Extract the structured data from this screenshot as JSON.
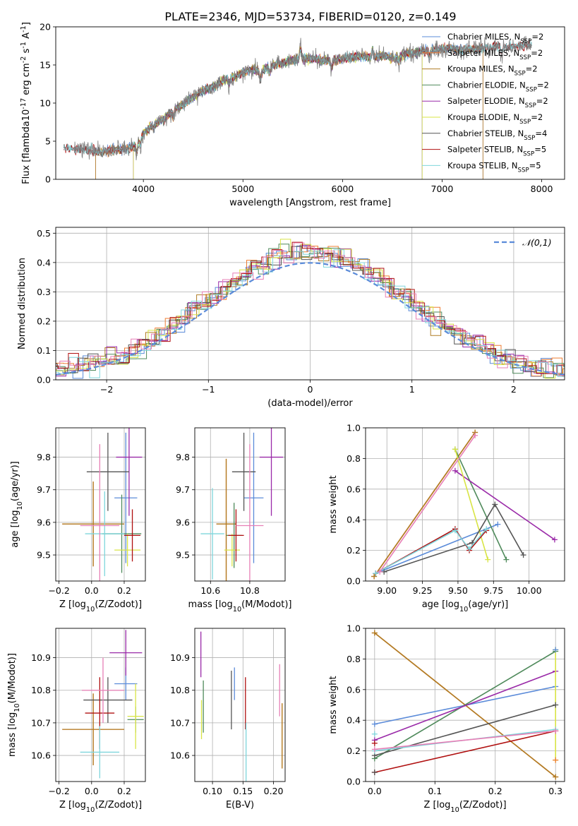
{
  "figure": {
    "title": "PLATE=2346, MJD=53734, FIBERID=0120, z=0.149"
  },
  "colors": {
    "grid": "#b0b0b0",
    "models": [
      "#5b8bd9",
      "#ee7d33",
      "#b07d26",
      "#4f8a5b",
      "#9a2aa8",
      "#d8e445",
      "#555555",
      "#b01010",
      "#7fd6dc"
    ],
    "extra_histogram": [
      "#e77fb6"
    ]
  },
  "chart_data": [
    {
      "type": "line",
      "id": "spectrum",
      "xlabel": "wavelength [Angstrom, rest frame]",
      "ylabel": "Flux [f$_\\lambda$10$^{-17}$ erg cm$^{-2}$ s$^{-1}$ A$^{-1}$]",
      "xlim": [
        3120,
        8230
      ],
      "ylim": [
        0,
        20
      ],
      "xticks": [
        4000,
        5000,
        6000,
        7000,
        8000
      ],
      "yticks": [
        0,
        5,
        10,
        15,
        20
      ],
      "legend_position": "top-right",
      "series": [
        {
          "name": "Chabrier MILES, N$_{SSP}$=2",
          "x": [
            3520,
            7410
          ],
          "cutoff_edges": [
            3520,
            7410
          ]
        },
        {
          "name": "Salpeter MILES, N$_{SSP}$=2",
          "x": [
            3520,
            7410
          ],
          "cutoff_edges": [
            3520,
            7410
          ]
        },
        {
          "name": "Kroupa MILES, N$_{SSP}$=2",
          "x": [
            3520,
            7410
          ],
          "cutoff_edges": [
            3520,
            7410
          ]
        },
        {
          "name": "Chabrier ELODIE, N$_{SSP}$=2",
          "x": [
            3900,
            6800
          ],
          "cutoff_edges": [
            3900,
            6800
          ]
        },
        {
          "name": "Salpeter ELODIE, N$_{SSP}$=2",
          "x": [
            3900,
            6800
          ],
          "cutoff_edges": [
            3900,
            6800
          ]
        },
        {
          "name": "Kroupa ELODIE, N$_{SSP}$=2",
          "x": [
            3900,
            6800
          ],
          "cutoff_edges": [
            3900,
            6800
          ]
        },
        {
          "name": "Chabrier STELIB, N$_{SSP}$=4",
          "x": [
            3200,
            7900
          ]
        },
        {
          "name": "Salpeter STELIB, N$_{SSP}$=5",
          "x": [
            3200,
            7900
          ]
        },
        {
          "name": "Kroupa STELIB, N$_{SSP}$=5",
          "x": [
            3200,
            7900
          ]
        }
      ],
      "observed_flux": {
        "x": [
          3300,
          3400,
          3500,
          3600,
          3700,
          3800,
          3900,
          4000,
          4100,
          4200,
          4300,
          4400,
          4500,
          4600,
          4700,
          4800,
          4900,
          5000,
          5100,
          5200,
          5300,
          5400,
          5500,
          5600,
          5700,
          5800,
          5900,
          6000,
          6100,
          6200,
          6300,
          6400,
          6500,
          6600,
          6700,
          6800,
          6900,
          7000,
          7100,
          7200,
          7300,
          7400,
          7500,
          7600,
          7700,
          7800,
          7900
        ],
        "y": [
          4.0,
          4.0,
          3.8,
          3.6,
          3.9,
          4.0,
          4.2,
          6.0,
          7.2,
          7.9,
          9.0,
          9.8,
          10.8,
          11.6,
          12.1,
          13.0,
          13.4,
          14.0,
          14.4,
          14.2,
          15.0,
          15.3,
          15.6,
          15.8,
          15.9,
          15.6,
          15.6,
          15.9,
          16.0,
          16.1,
          16.0,
          16.3,
          15.9,
          16.3,
          16.5,
          16.8,
          17.0,
          17.2,
          17.1,
          17.0,
          17.1,
          17.2,
          17.4,
          17.5,
          17.4,
          17.6,
          17.7
        ]
      }
    },
    {
      "type": "step-histogram",
      "id": "residuals",
      "xlabel": "(data-model)/error",
      "ylabel": "Normed distribution",
      "xlim": [
        -2.5,
        2.5
      ],
      "ylim": [
        0,
        0.52
      ],
      "xticks": [
        -2,
        -1,
        0,
        1,
        2
      ],
      "yticks": [
        0.0,
        0.1,
        0.2,
        0.3,
        0.4,
        0.5
      ],
      "legend_position": "top-right",
      "bin_width": 0.1,
      "reference_curve": {
        "name": "$\\mathcal{N}(0,1)$",
        "mu": 0,
        "sigma": 1
      }
    },
    {
      "type": "errorbar",
      "id": "age-vs-Z",
      "xlabel": "Z [log$_{10}$($Z/Z_\\odot$)]",
      "ylabel": "age  [log$_{10}$($age/yr$)]",
      "xlim": [
        -0.22,
        0.33
      ],
      "ylim": [
        9.42,
        9.89
      ],
      "xticks": [
        -0.2,
        0.0,
        0.2
      ],
      "yticks": [
        9.5,
        9.6,
        9.7,
        9.8
      ],
      "points": [
        {
          "x": 0.21,
          "y": 9.675,
          "xerr": 0.07,
          "yerr": 0.2
        },
        {
          "x": 0.01,
          "y": 9.595,
          "xerr": 0.19,
          "yerr": 0.13
        },
        {
          "x": 0.01,
          "y": 9.595,
          "xerr": 0.19,
          "yerr": 0.13
        },
        {
          "x": 0.185,
          "y": 9.565,
          "xerr": 0.12,
          "yerr": 0.12
        },
        {
          "x": 0.23,
          "y": 9.8,
          "xerr": 0.08,
          "yerr": 0.18
        },
        {
          "x": 0.22,
          "y": 9.515,
          "xerr": 0.08,
          "yerr": 0.05
        },
        {
          "x": 0.1,
          "y": 9.755,
          "xerr": 0.13,
          "yerr": 0.12
        },
        {
          "x": 0.25,
          "y": 9.56,
          "xerr": 0.05,
          "yerr": 0.08
        },
        {
          "x": 0.08,
          "y": 9.565,
          "xerr": 0.12,
          "yerr": 0.13
        },
        {
          "x": 0.05,
          "y": 9.59,
          "xerr": 0.12,
          "yerr": 0.25
        }
      ]
    },
    {
      "type": "errorbar",
      "id": "age-vs-mass",
      "xlabel": "mass [log$_{10}$($M/M_\\odot$)]",
      "ylabel": "",
      "xlim": [
        10.52,
        10.98
      ],
      "ylim": [
        9.42,
        9.89
      ],
      "xticks": [
        10.6,
        10.8
      ],
      "yticks": [
        9.5,
        9.6,
        9.7,
        9.8
      ],
      "points": [
        {
          "x": 10.82,
          "y": 9.675,
          "xerr": 0.05,
          "yerr": 0.2
        },
        {
          "x": 10.68,
          "y": 9.595,
          "xerr": 0.05,
          "yerr": 0.2
        },
        {
          "x": 10.68,
          "y": 9.595,
          "xerr": 0.05,
          "yerr": 0.2
        },
        {
          "x": 10.72,
          "y": 9.56,
          "xerr": 0.04,
          "yerr": 0.1
        },
        {
          "x": 10.91,
          "y": 9.8,
          "xerr": 0.06,
          "yerr": 0.18
        },
        {
          "x": 10.71,
          "y": 9.515,
          "xerr": 0.04,
          "yerr": 0.05
        },
        {
          "x": 10.77,
          "y": 9.755,
          "xerr": 0.06,
          "yerr": 0.12
        },
        {
          "x": 10.73,
          "y": 9.56,
          "xerr": 0.04,
          "yerr": 0.08
        },
        {
          "x": 10.61,
          "y": 9.565,
          "xerr": 0.06,
          "yerr": 0.14
        },
        {
          "x": 10.8,
          "y": 9.59,
          "xerr": 0.07,
          "yerr": 0.25
        }
      ]
    },
    {
      "type": "line",
      "id": "weight-vs-age",
      "xlabel": "age  [log$_{10}$($age/yr$)]",
      "ylabel": "mass weight",
      "xlim": [
        8.85,
        10.25
      ],
      "ylim": [
        0.0,
        1.0
      ],
      "xticks": [
        9.0,
        9.25,
        9.5,
        9.75,
        10.0
      ],
      "yticks": [
        0.0,
        0.2,
        0.4,
        0.6,
        0.8,
        1.0
      ],
      "series": [
        {
          "x": [
            8.92,
            9.78
          ],
          "y": [
            0.05,
            0.37
          ]
        },
        {
          "x": [
            8.91,
            9.62
          ],
          "y": [
            0.03,
            0.97
          ]
        },
        {
          "x": [
            8.91,
            9.62
          ],
          "y": [
            0.03,
            0.97
          ]
        },
        {
          "x": [
            9.48,
            9.84
          ],
          "y": [
            0.86,
            0.14
          ]
        },
        {
          "x": [
            9.48,
            10.18
          ],
          "y": [
            0.72,
            0.27
          ]
        },
        {
          "x": [
            9.48,
            9.71
          ],
          "y": [
            0.86,
            0.14
          ]
        },
        {
          "x": [
            8.98,
            9.6,
            9.76,
            9.96
          ],
          "y": [
            0.06,
            0.25,
            0.5,
            0.17
          ]
        },
        {
          "x": [
            8.92,
            9.48,
            9.58,
            9.7
          ],
          "y": [
            0.05,
            0.34,
            0.2,
            0.33
          ]
        },
        {
          "x": [
            8.92,
            9.48,
            9.58,
            9.7
          ],
          "y": [
            0.05,
            0.33,
            0.21,
            0.34
          ]
        },
        {
          "x": [
            8.95,
            9.62
          ],
          "y": [
            0.06,
            0.95
          ]
        }
      ]
    },
    {
      "type": "errorbar",
      "id": "mass-vs-Z",
      "xlabel": "Z [log$_{10}$($Z/Z_\\odot$)]",
      "ylabel": "mass [log$_{10}$($M/M_\\odot$)]",
      "xlim": [
        -0.22,
        0.33
      ],
      "ylim": [
        10.52,
        10.99
      ],
      "xticks": [
        -0.2,
        0.0,
        0.2
      ],
      "yticks": [
        10.6,
        10.7,
        10.8,
        10.9
      ],
      "points": [
        {
          "x": 0.21,
          "y": 10.82,
          "xerr": 0.07,
          "yerr": 0.05
        },
        {
          "x": 0.01,
          "y": 10.68,
          "xerr": 0.19,
          "yerr": 0.11
        },
        {
          "x": 0.01,
          "y": 10.68,
          "xerr": 0.19,
          "yerr": 0.11
        },
        {
          "x": 0.27,
          "y": 10.71,
          "xerr": 0.05,
          "yerr": 0.04
        },
        {
          "x": 0.21,
          "y": 10.915,
          "xerr": 0.1,
          "yerr": 0.07
        },
        {
          "x": 0.27,
          "y": 10.72,
          "xerr": 0.05,
          "yerr": 0.1
        },
        {
          "x": 0.1,
          "y": 10.77,
          "xerr": 0.15,
          "yerr": 0.07
        },
        {
          "x": 0.05,
          "y": 10.73,
          "xerr": 0.09,
          "yerr": 0.11
        },
        {
          "x": 0.05,
          "y": 10.61,
          "xerr": 0.12,
          "yerr": 0.08
        },
        {
          "x": 0.07,
          "y": 10.8,
          "xerr": 0.13,
          "yerr": 0.1
        }
      ]
    },
    {
      "type": "errorbar",
      "id": "mass-vs-ebv",
      "xlabel": "E(B-V)",
      "ylabel": "",
      "xlim": [
        0.071,
        0.219
      ],
      "ylim": [
        10.52,
        10.99
      ],
      "xticks": [
        0.1,
        0.15,
        0.2
      ],
      "yticks": [
        10.6,
        10.7,
        10.8,
        10.9
      ],
      "points": [
        {
          "x": 0.136,
          "y": 10.82,
          "yerr": 0.05
        },
        {
          "x": 0.214,
          "y": 10.66,
          "yerr": 0.1
        },
        {
          "x": 0.214,
          "y": 10.66,
          "yerr": 0.1
        },
        {
          "x": 0.085,
          "y": 10.75,
          "yerr": 0.08
        },
        {
          "x": 0.081,
          "y": 10.91,
          "yerr": 0.07
        },
        {
          "x": 0.082,
          "y": 10.71,
          "yerr": 0.06
        },
        {
          "x": 0.131,
          "y": 10.77,
          "yerr": 0.09
        },
        {
          "x": 0.154,
          "y": 10.76,
          "yerr": 0.08
        },
        {
          "x": 0.155,
          "y": 10.61,
          "yerr": 0.09
        },
        {
          "x": 0.21,
          "y": 10.8,
          "yerr": 0.08
        }
      ]
    },
    {
      "type": "line",
      "id": "weight-vs-Z",
      "xlabel": "Z [log$_{10}$($Z/Z_\\odot$)]",
      "ylabel": "mass weight",
      "xlim": [
        -0.015,
        0.315
      ],
      "ylim": [
        0.0,
        1.0
      ],
      "xticks": [
        0.0,
        0.1,
        0.2,
        0.3
      ],
      "yticks": [
        0.0,
        0.2,
        0.4,
        0.6,
        0.8,
        1.0
      ],
      "series": [
        {
          "x": [
            0.0,
            0.3
          ],
          "y": [
            0.375,
            0.62
          ]
        },
        {
          "x": [
            0.0,
            0.3
          ],
          "y": [
            0.97,
            0.03
          ]
        },
        {
          "x": [
            0.0,
            0.3
          ],
          "y": [
            0.97,
            0.03
          ]
        },
        {
          "x": [
            0.0,
            0.3
          ],
          "y": [
            0.15,
            0.85
          ]
        },
        {
          "x": [
            0.0,
            0.3
          ],
          "y": [
            0.27,
            0.72
          ]
        },
        {
          "x": [
            0.3,
            0.3
          ],
          "y": [
            0.14,
            0.86
          ]
        },
        {
          "x": [
            0.0,
            0.3
          ],
          "y": [
            0.17,
            0.5
          ]
        },
        {
          "x": [
            0.0,
            0.3
          ],
          "y": [
            0.06,
            0.33
          ]
        },
        {
          "x": [
            0.0,
            0.3
          ],
          "y": [
            0.2,
            0.34
          ]
        },
        {
          "x": [
            0.0,
            0.3
          ],
          "y": [
            0.21,
            0.33
          ]
        }
      ],
      "extra_markers": [
        {
          "x": 0.0,
          "y": 0.06
        },
        {
          "x": 0.0,
          "y": 0.25
        },
        {
          "x": 0.0,
          "y": 0.31
        },
        {
          "x": 0.3,
          "y": 0.86
        },
        {
          "x": 0.3,
          "y": 0.14
        }
      ]
    }
  ]
}
